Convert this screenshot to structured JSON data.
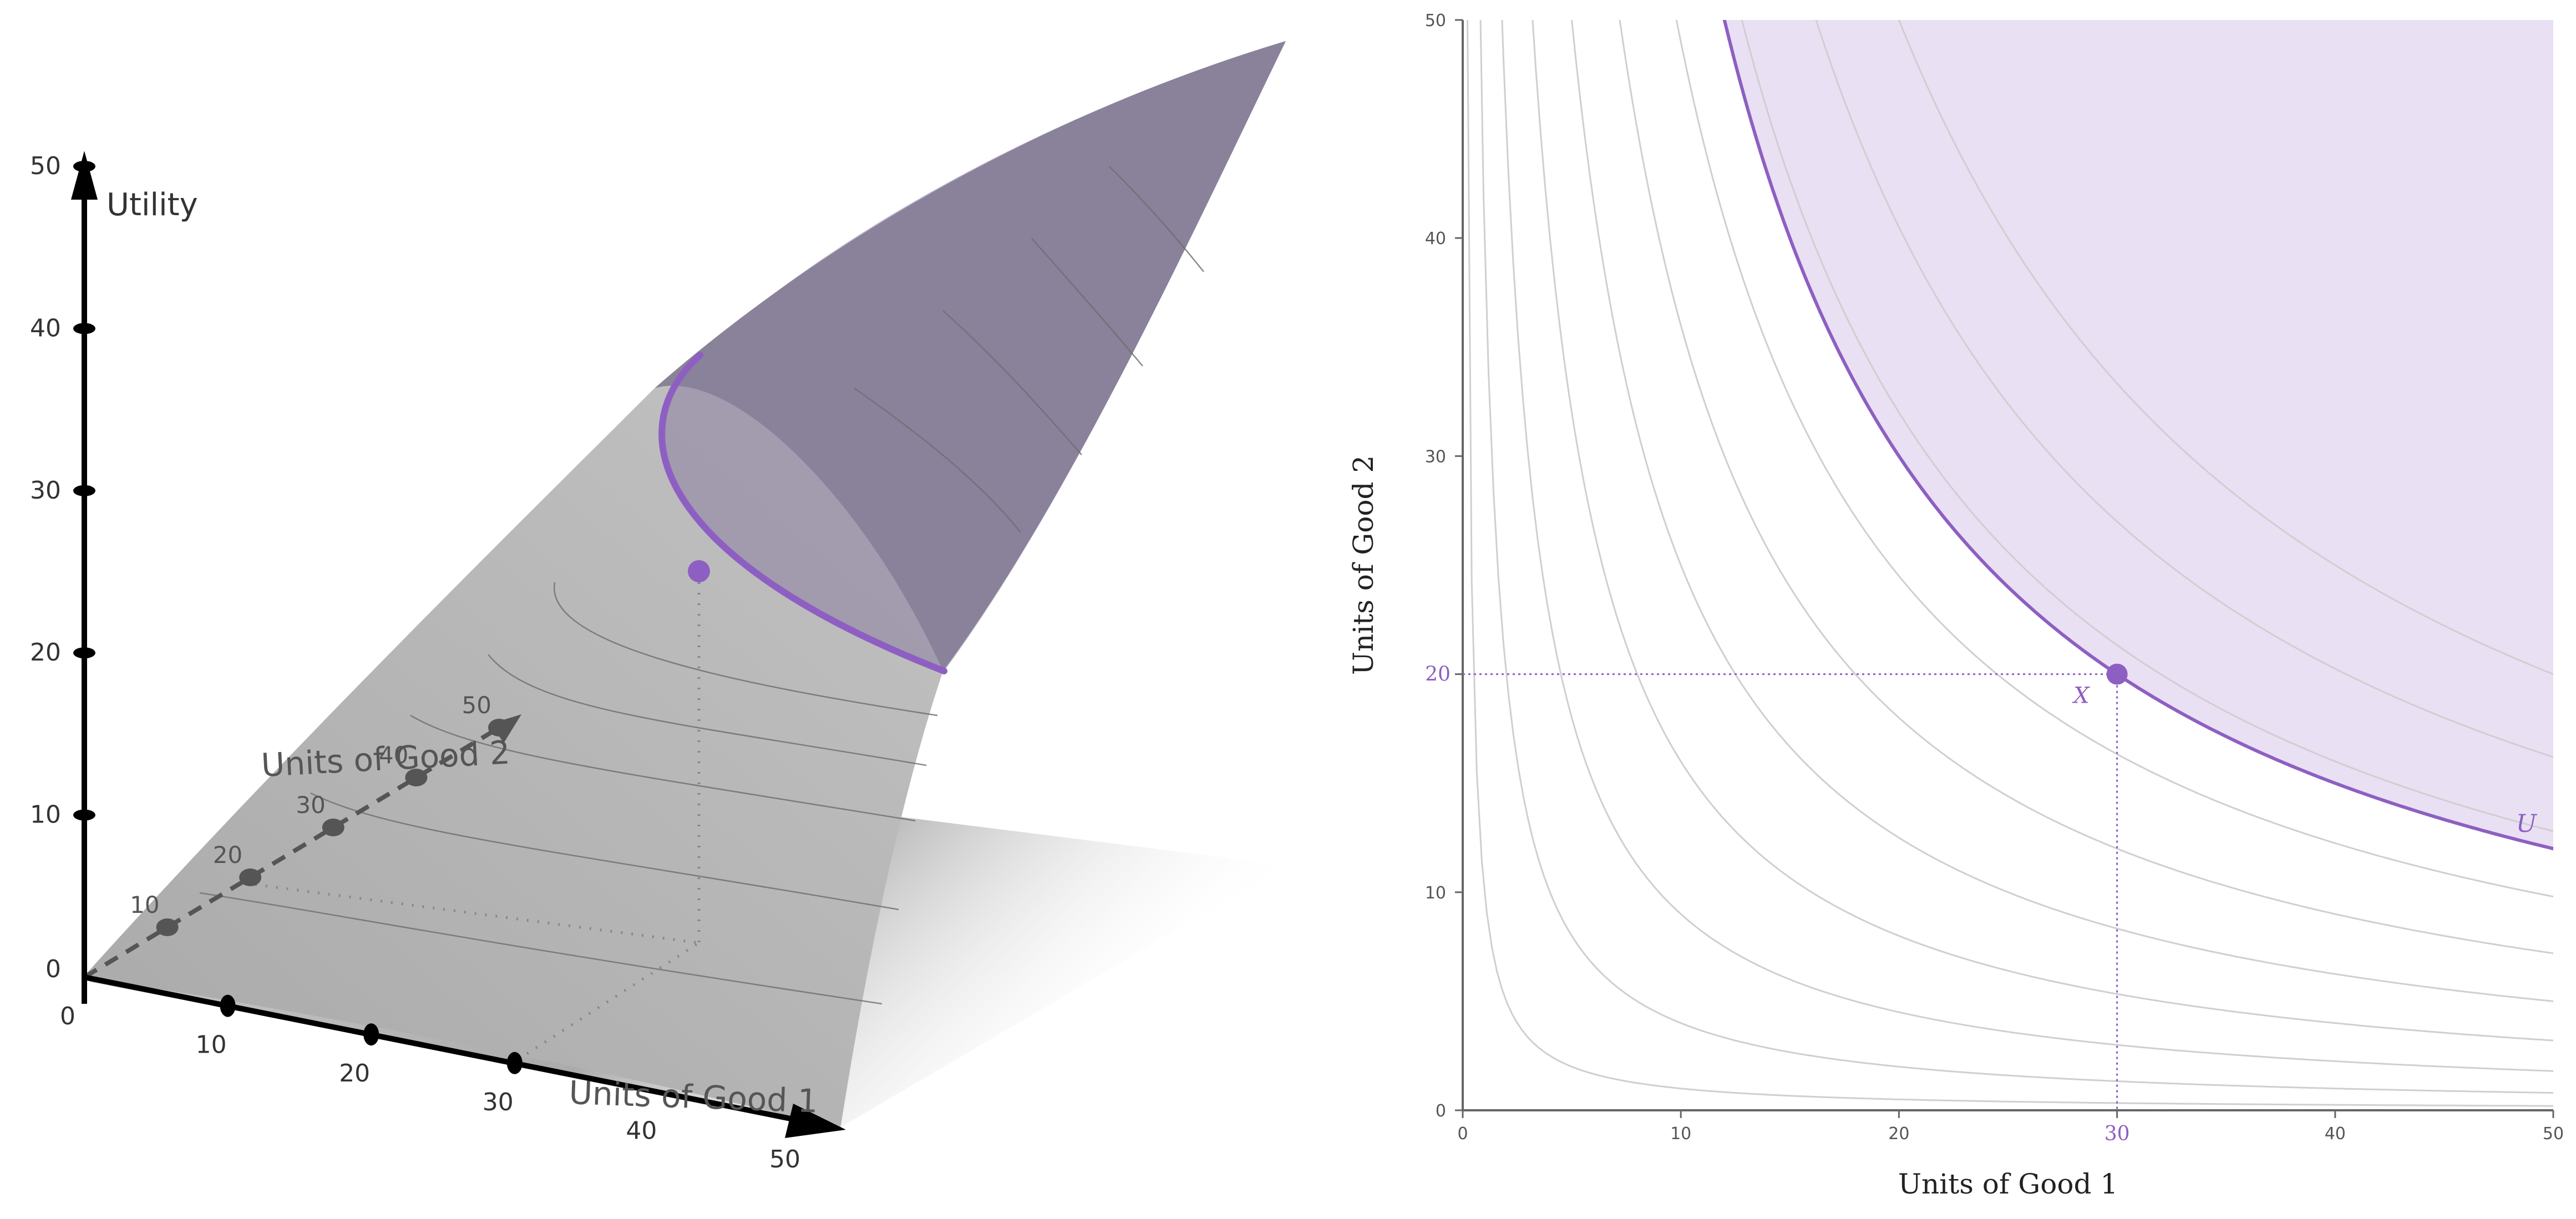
{
  "chart_data": [
    {
      "type": "surface3d",
      "axes": {
        "utility": {
          "label": "Utility",
          "ticks": [
            "0",
            "10",
            "20",
            "30",
            "40",
            "50"
          ],
          "range": [
            0,
            50
          ]
        },
        "good1": {
          "label": "Units of Good 1",
          "ticks": [
            "0",
            "10",
            "20",
            "30",
            "40",
            "50"
          ],
          "range": [
            0,
            50
          ]
        },
        "good2": {
          "label": "Units of Good 2",
          "ticks": [
            "0",
            "10",
            "20",
            "30",
            "40",
            "50"
          ],
          "range": [
            0,
            50
          ]
        }
      },
      "point": {
        "good1": 30,
        "good2": 20
      },
      "colors": {
        "surface": "#8a8396",
        "highlight": "#8e5fc2",
        "floor": "#bdbdbd",
        "axis": "#000000"
      }
    },
    {
      "type": "line",
      "title": "",
      "xlabel": "Units of Good 1",
      "ylabel": "Units of Good 2",
      "xlim": [
        0,
        50
      ],
      "ylim": [
        0,
        50
      ],
      "xticks": [
        0,
        10,
        20,
        30,
        40,
        50
      ],
      "yticks": [
        0,
        10,
        20,
        30,
        40,
        50
      ],
      "indifference_levels": [
        10,
        40,
        90,
        160,
        250,
        360,
        490,
        640,
        810,
        1000
      ],
      "highlight": {
        "label": "U",
        "level": 600,
        "region": "preferred set above U"
      },
      "point": {
        "x": 30,
        "y": 20,
        "label": "X"
      },
      "highlight_ticks": {
        "x": "30",
        "y": "20"
      },
      "colors": {
        "highlight": "#8e5fc2",
        "fill": "#e9e0f4",
        "curves": "#cfcfcf",
        "axis": "#666666",
        "text": "#333333"
      }
    }
  ]
}
